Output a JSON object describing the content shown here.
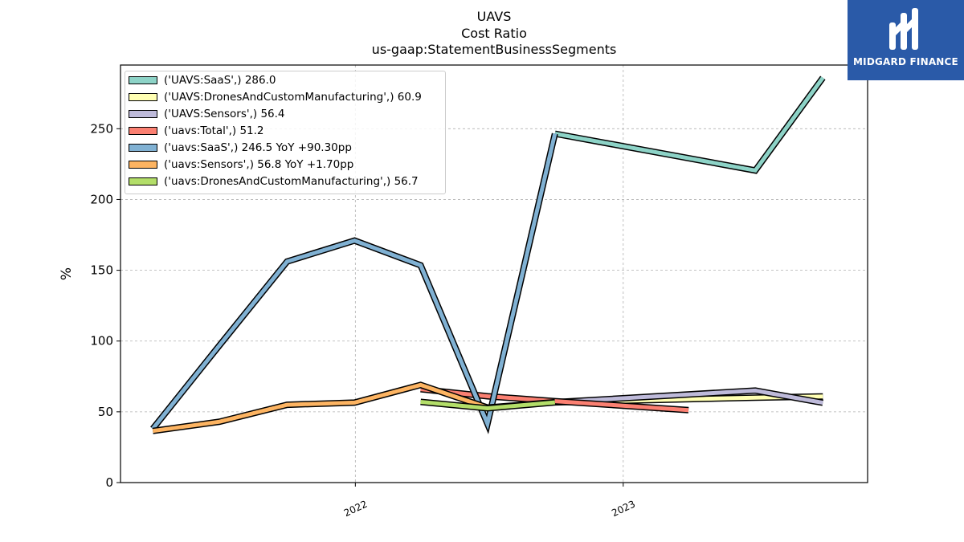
{
  "title": "UAVS",
  "subtitle1": "Cost Ratio",
  "subtitle2": "us-gaap:StatementBusinessSegments",
  "logo_text": "MIDGARD FINANCE",
  "chart_data": {
    "type": "line",
    "ylabel": "%",
    "ylim": [
      0,
      295
    ],
    "yticks": [
      0,
      50,
      100,
      150,
      200,
      250
    ],
    "xlim": [
      "2021-02-15",
      "2023-11-30"
    ],
    "xticks": [
      {
        "date": "2022-01-01",
        "label": "2022"
      },
      {
        "date": "2023-01-01",
        "label": "2023"
      }
    ],
    "grid": true,
    "legend_position": "top-left",
    "series": [
      {
        "name": "('UAVS:SaaS',)",
        "legend": "('UAVS:SaaS',) 286.0",
        "color": "#8dd3c7",
        "points": [
          [
            "2022-09-30",
            246.5
          ],
          [
            "2023-06-30",
            220.5
          ],
          [
            "2023-09-30",
            286.0
          ]
        ]
      },
      {
        "name": "('UAVS:DronesAndCustomManufacturing',)",
        "legend": "('UAVS:DronesAndCustomManufacturing',) 60.9",
        "color": "#ffffb3",
        "points": [
          [
            "2022-09-30",
            56.7
          ],
          [
            "2023-06-30",
            60.0
          ],
          [
            "2023-09-30",
            60.9
          ]
        ]
      },
      {
        "name": "('UAVS:Sensors',)",
        "legend": "('UAVS:Sensors',) 56.4",
        "color": "#bebada",
        "points": [
          [
            "2022-09-30",
            56.8
          ],
          [
            "2023-06-30",
            65.0
          ],
          [
            "2023-09-30",
            56.4
          ]
        ]
      },
      {
        "name": "('uavs:Total',)",
        "legend": "('uavs:Total',) 51.2",
        "color": "#fb8072",
        "points": [
          [
            "2022-03-31",
            66.0
          ],
          [
            "2022-06-30",
            61.0
          ],
          [
            "2022-09-30",
            57.5
          ],
          [
            "2023-03-31",
            51.2
          ]
        ]
      },
      {
        "name": "('uavs:SaaS',)",
        "legend": "('uavs:SaaS',) 246.5 YoY +90.30pp",
        "color": "#80b1d3",
        "points": [
          [
            "2021-03-31",
            38.0
          ],
          [
            "2021-06-30",
            97.0
          ],
          [
            "2021-09-30",
            156.2
          ],
          [
            "2021-12-31",
            171.0
          ],
          [
            "2022-03-31",
            153.5
          ],
          [
            "2022-06-30",
            41.5
          ],
          [
            "2022-09-30",
            246.5
          ]
        ]
      },
      {
        "name": "('uavs:Sensors',)",
        "legend": "('uavs:Sensors',) 56.8 YoY +1.70pp",
        "color": "#fdb462",
        "points": [
          [
            "2021-03-31",
            36.5
          ],
          [
            "2021-06-30",
            43.0
          ],
          [
            "2021-09-30",
            55.0
          ],
          [
            "2021-12-31",
            56.5
          ],
          [
            "2022-03-31",
            69.0
          ],
          [
            "2022-06-30",
            53.0
          ],
          [
            "2022-09-30",
            56.8
          ]
        ]
      },
      {
        "name": "('uavs:DronesAndCustomManufacturing',)",
        "legend": "('uavs:DronesAndCustomManufacturing',) 56.7",
        "color": "#b3de69",
        "points": [
          [
            "2022-03-31",
            57.0
          ],
          [
            "2022-06-30",
            52.5
          ],
          [
            "2022-09-30",
            56.7
          ]
        ]
      }
    ]
  }
}
